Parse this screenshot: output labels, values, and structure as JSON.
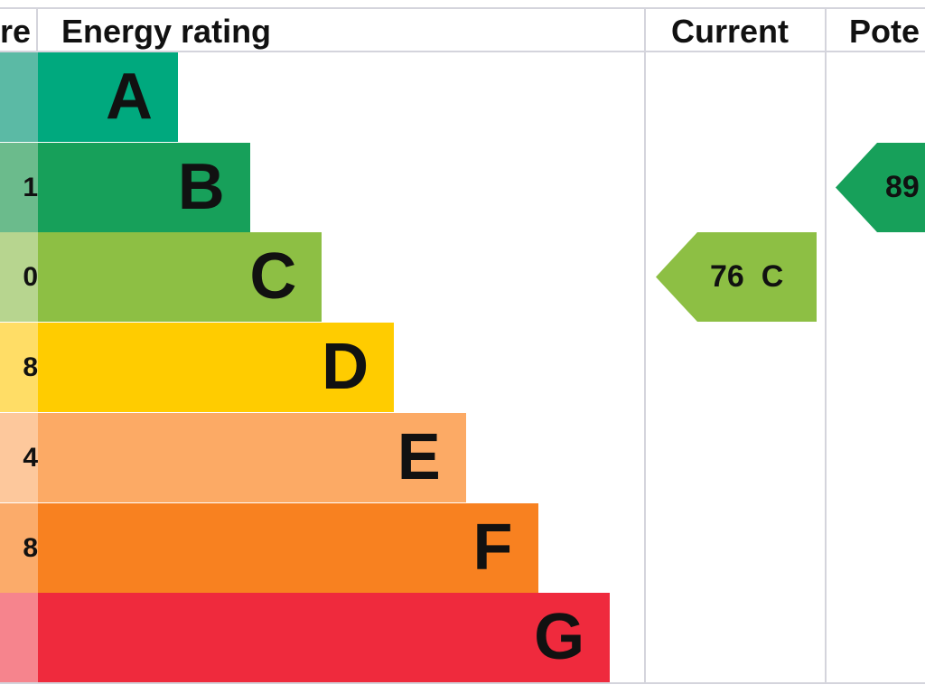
{
  "header": {
    "score_label": "re",
    "rating_label": "Energy rating",
    "current_label": "Current",
    "potential_label": "Pote"
  },
  "chart_data": {
    "type": "bar",
    "title": "",
    "categories": [
      "A",
      "B",
      "C",
      "D",
      "E",
      "F",
      "G"
    ],
    "score_fragments": [
      "",
      "1",
      "0",
      "8",
      "4",
      "8",
      ""
    ],
    "bar_colors": [
      "#00a97e",
      "#17a05a",
      "#8dbf44",
      "#ffcc00",
      "#fcaa65",
      "#f88120",
      "#ef2a3d"
    ],
    "score_colors": [
      "#5bbaa5",
      "#6bbb8c",
      "#b7d58f",
      "#ffdd66",
      "#fdc89c",
      "#fbab6a",
      "#f6848d"
    ],
    "current": {
      "value": 76,
      "rating": "C",
      "text": "76  C",
      "color": "#8dbf44"
    },
    "potential": {
      "value": 89,
      "rating": "B",
      "text": "89",
      "color": "#17a05a"
    }
  }
}
